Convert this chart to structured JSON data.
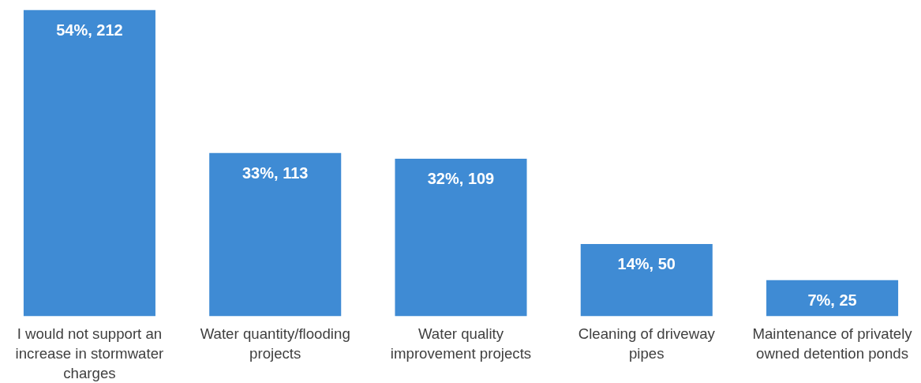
{
  "chart_data": {
    "type": "bar",
    "categories": [
      "I would not support an increase in stormwater charges",
      "Water quantity/flooding projects",
      "Water quality improvement projects",
      "Cleaning of driveway pipes",
      "Maintenance of privately owned detention ponds"
    ],
    "values": [
      212,
      113,
      109,
      50,
      25
    ],
    "value_labels": [
      "54%, 212",
      "33%, 113",
      "32%, 109",
      "14%, 50",
      "7%, 25"
    ],
    "color": "#3f8bd4"
  }
}
